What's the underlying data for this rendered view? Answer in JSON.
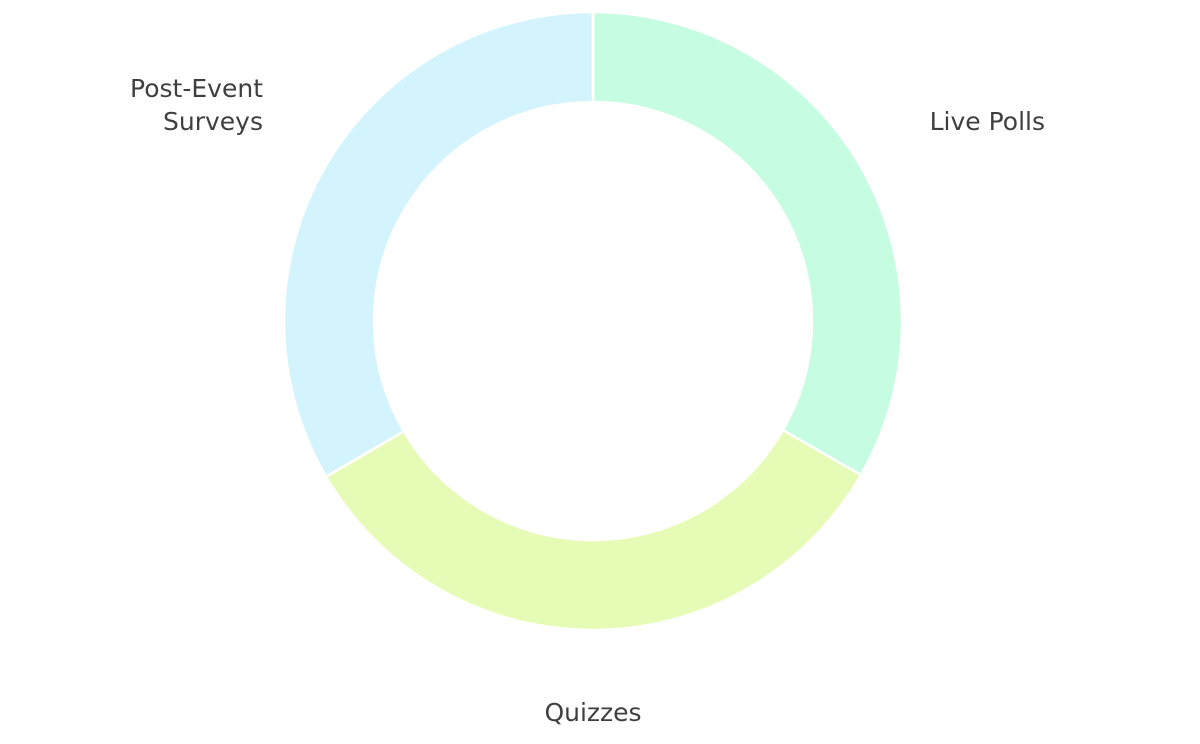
{
  "chart_data": {
    "type": "pie",
    "donut": true,
    "categories": [
      "Live Polls",
      "Quizzes",
      "Post-Event Surveys"
    ],
    "label_lines": [
      [
        "Live Polls"
      ],
      [
        "Quizzes"
      ],
      [
        "Post-Event",
        "Surveys"
      ]
    ],
    "values": [
      33.3,
      33.3,
      33.4
    ],
    "colors": [
      "#c6fce2",
      "#e6fcb6",
      "#d3f4fc"
    ],
    "legend": "none"
  }
}
